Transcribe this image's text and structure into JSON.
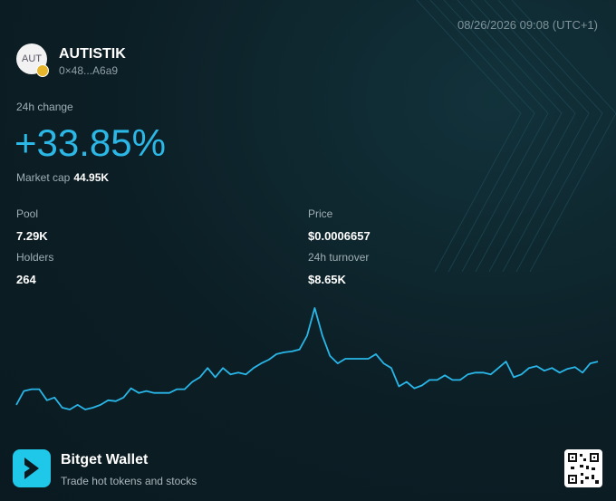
{
  "timestamp": "08/26/2026 09:08 (UTC+1)",
  "token": {
    "avatar": "AUT",
    "name": "AUTISTIK",
    "address": "0×48...A6a9"
  },
  "change": {
    "label": "24h change",
    "value": "+33.85%"
  },
  "market_cap": {
    "label": "Market cap",
    "value": "44.95K"
  },
  "stats": [
    {
      "label": "Pool",
      "value": "7.29K"
    },
    {
      "label": "Price",
      "value": "$0.0006657"
    },
    {
      "label": "Holders",
      "value": "264"
    },
    {
      "label": "24h turnover",
      "value": "$8.65K"
    }
  ],
  "sparkline": {
    "color": "#29b6e8",
    "values": [
      15,
      30,
      32,
      32,
      20,
      23,
      12,
      10,
      15,
      10,
      12,
      15,
      20,
      19,
      23,
      33,
      28,
      30,
      28,
      28,
      28,
      32,
      32,
      40,
      45,
      55,
      45,
      55,
      48,
      50,
      48,
      55,
      60,
      64,
      70,
      72,
      73,
      75,
      90,
      120,
      90,
      68,
      60,
      65,
      65,
      65,
      65,
      70,
      60,
      55,
      35,
      40,
      33,
      36,
      42,
      42,
      47,
      42,
      42,
      48,
      50,
      50,
      48,
      55,
      62,
      45,
      48,
      55,
      57,
      52,
      55,
      50,
      54,
      56,
      50,
      60,
      62
    ]
  },
  "footer": {
    "brand": "Bitget Wallet",
    "tagline": "Trade hot tokens and stocks"
  }
}
